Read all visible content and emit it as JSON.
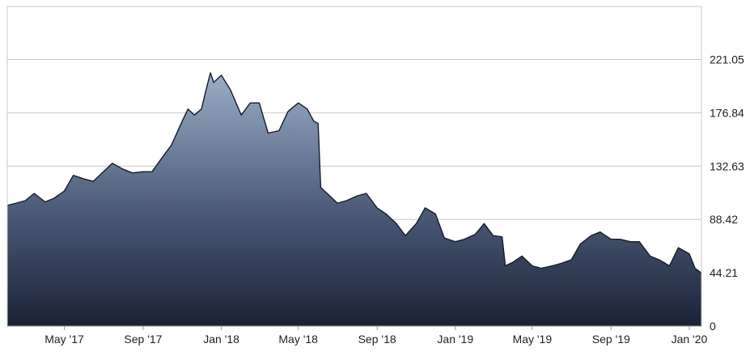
{
  "chart_data": {
    "type": "area",
    "title": "",
    "xlabel": "",
    "ylabel": "",
    "x_ticks": [
      "May '17",
      "Sep '17",
      "Jan '18",
      "May '18",
      "Sep '18",
      "Jan '19",
      "May '19",
      "Sep '19",
      "Jan '20"
    ],
    "y_ticks": [
      "0",
      "44.21",
      "88.42",
      "132.63",
      "176.84",
      "221.05"
    ],
    "ylim": [
      0,
      265
    ],
    "xlim": [
      "2017-02-01",
      "2020-01-20"
    ],
    "grid": true,
    "legend": "none",
    "colors": {
      "fill_top": "#9aaec6",
      "fill_bottom": "#1b2236",
      "line": "#141c2c",
      "grid": "#c8c8c8"
    },
    "series": [
      {
        "x": [
          "2017-02-01",
          "2017-02-15",
          "2017-03-01",
          "2017-03-15",
          "2017-04-01",
          "2017-04-15",
          "2017-05-01",
          "2017-05-15",
          "2017-06-01",
          "2017-06-15",
          "2017-07-01",
          "2017-07-15",
          "2017-08-01",
          "2017-08-15",
          "2017-09-01",
          "2017-09-15",
          "2017-10-01",
          "2017-10-15",
          "2017-11-01",
          "2017-11-10",
          "2017-11-20",
          "2017-12-01",
          "2017-12-10",
          "2017-12-15",
          "2017-12-20",
          "2018-01-01",
          "2018-01-15",
          "2018-02-01",
          "2018-02-15",
          "2018-03-01",
          "2018-03-15",
          "2018-04-01",
          "2018-04-15",
          "2018-05-01",
          "2018-05-15",
          "2018-05-25",
          "2018-06-01",
          "2018-06-05",
          "2018-06-15",
          "2018-07-01",
          "2018-07-15",
          "2018-08-01",
          "2018-08-15",
          "2018-09-01",
          "2018-09-15",
          "2018-10-01",
          "2018-10-15",
          "2018-11-01",
          "2018-11-15",
          "2018-12-01",
          "2018-12-15",
          "2019-01-01",
          "2019-01-15",
          "2019-02-01",
          "2019-02-15",
          "2019-03-01",
          "2019-03-15",
          "2019-03-20",
          "2019-04-01",
          "2019-04-15",
          "2019-05-01",
          "2019-05-15",
          "2019-06-01",
          "2019-06-15",
          "2019-07-01",
          "2019-07-15",
          "2019-08-01",
          "2019-08-15",
          "2019-09-01",
          "2019-09-15",
          "2019-10-01",
          "2019-10-15",
          "2019-11-01",
          "2019-11-15",
          "2019-12-01",
          "2019-12-15",
          "2020-01-01",
          "2020-01-10",
          "2020-01-20"
        ],
        "y": [
          100,
          102,
          104,
          110,
          103,
          106,
          112,
          125,
          122,
          120,
          128,
          135,
          130,
          127,
          128,
          128,
          140,
          150,
          170,
          180,
          175,
          180,
          200,
          210,
          202,
          208,
          196,
          175,
          185,
          185,
          160,
          162,
          178,
          185,
          180,
          170,
          168,
          115,
          110,
          102,
          104,
          108,
          110,
          98,
          93,
          85,
          75,
          85,
          98,
          93,
          73,
          70,
          72,
          76,
          85,
          75,
          74,
          50,
          53,
          58,
          50,
          48,
          50,
          52,
          55,
          68,
          75,
          78,
          72,
          72,
          70,
          70,
          58,
          55,
          50,
          65,
          60,
          48,
          44
        ]
      }
    ]
  }
}
